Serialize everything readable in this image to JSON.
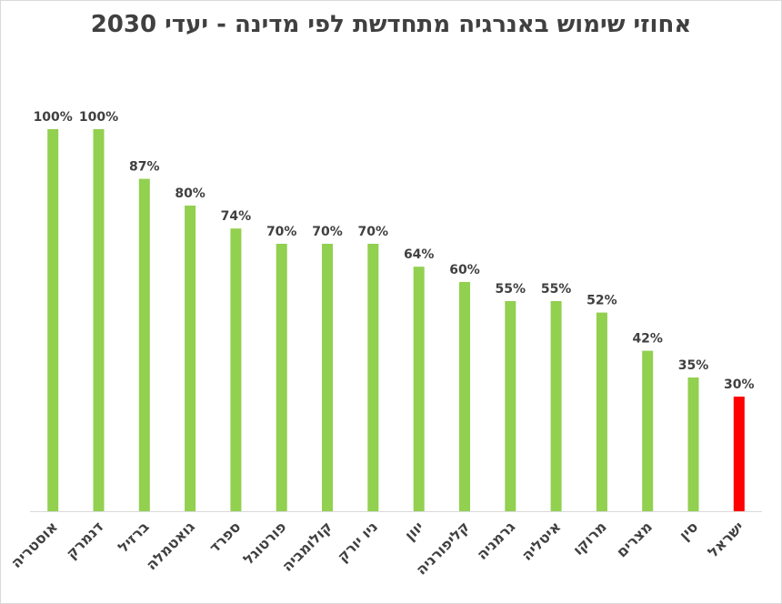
{
  "chart_data": {
    "type": "bar",
    "title": "אחוזי שימוש באנרגיה מתחדשת לפי מדינה - יעדי 2030",
    "xlabel": "",
    "ylabel": "",
    "ylim": [
      0,
      100
    ],
    "value_suffix": "%",
    "grid": false,
    "legend": "none",
    "categories": [
      "אוסטריה",
      "דנמרק",
      "ברזיל",
      "גואטמלה",
      "ספרד",
      "פורטוגל",
      "קולומביה",
      "ניו יורק",
      "יוון",
      "קליפורניה",
      "גרמניה",
      "איטליה",
      "מרוקו",
      "מצרים",
      "סין",
      "ישראל"
    ],
    "values": [
      100,
      100,
      87,
      80,
      74,
      70,
      70,
      70,
      64,
      60,
      55,
      55,
      52,
      42,
      35,
      30
    ],
    "colors": {
      "default": "#92d050",
      "highlight": "#ff0000",
      "highlight_category": "ישראל",
      "axis": "#d9d9d9",
      "text": "#404040"
    }
  }
}
